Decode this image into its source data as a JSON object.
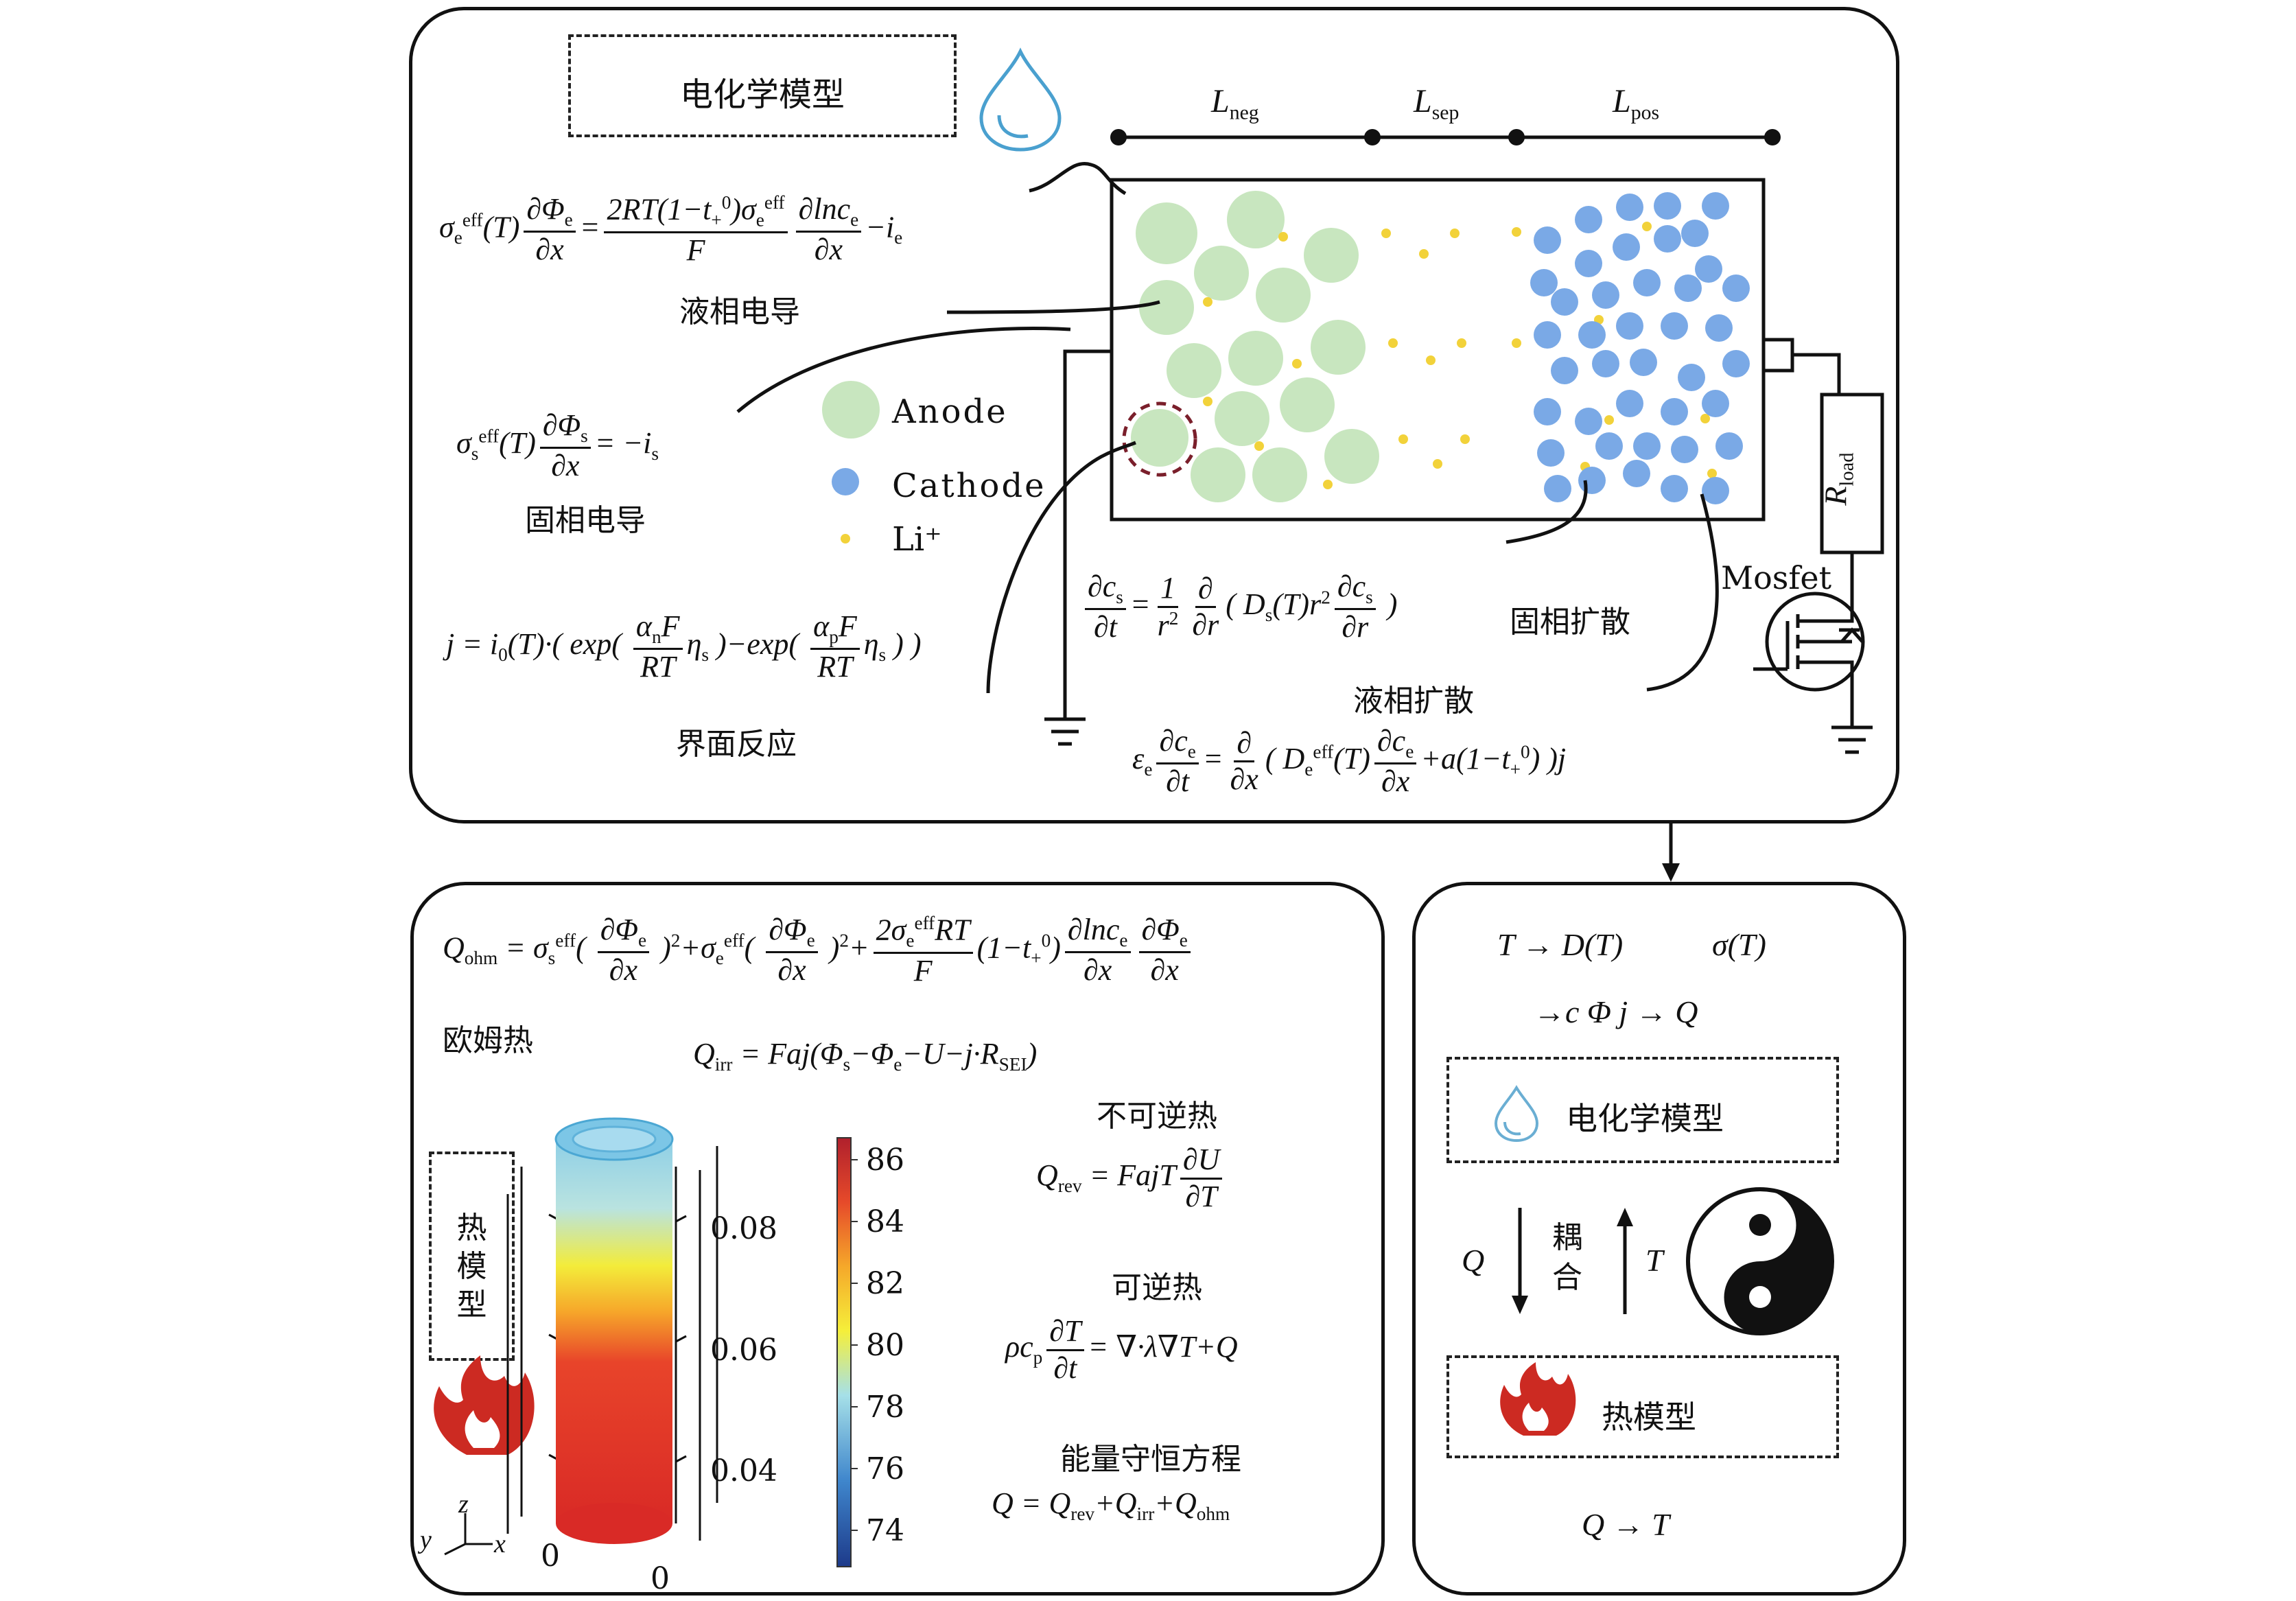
{
  "top_panel": {
    "model_label": "电化学模型",
    "lengths": {
      "neg": "L",
      "neg_sub": "neg",
      "sep": "L",
      "sep_sub": "sep",
      "pos": "L",
      "pos_sub": "pos"
    },
    "labels": {
      "liquid_conduction": "液相电导",
      "solid_conduction": "固相电导",
      "interface_reaction": "界面反应",
      "solid_diffusion": "固相扩散",
      "liquid_diffusion": "液相扩散"
    },
    "legend": [
      {
        "name": "Anode",
        "color": "#c8e6bf"
      },
      {
        "name": "Cathode",
        "color": "#7aa9e6"
      },
      {
        "name": "Li⁺",
        "color": "#f2d23a"
      }
    ],
    "circuit": {
      "rload": "R",
      "rload_sub": "load",
      "mosfet": "Mosfet"
    }
  },
  "bottom_left": {
    "ohm_label": "欧姆热",
    "irr_label": "不可逆热",
    "rev_label": "可逆热",
    "energy_label": "能量守恒方程",
    "thermal_model_label": "热模型",
    "colorbar_ticks": [
      "86",
      "84",
      "82",
      "80",
      "78",
      "76",
      "74"
    ],
    "axis_ticks_z": [
      "0.08",
      "0.06",
      "0.04"
    ],
    "axis_origin": [
      "0",
      "0"
    ],
    "axes": {
      "x": "x",
      "y": "y",
      "z": "z"
    }
  },
  "bottom_right": {
    "line1_a": "T → D(T)",
    "line1_b": "σ(T)",
    "line2": "→c Φ j → Q",
    "em_label": "电化学模型",
    "coupling": "耦合",
    "q": "Q",
    "t": "T",
    "thermal_label": "热模型",
    "bottom": "Q → T"
  }
}
